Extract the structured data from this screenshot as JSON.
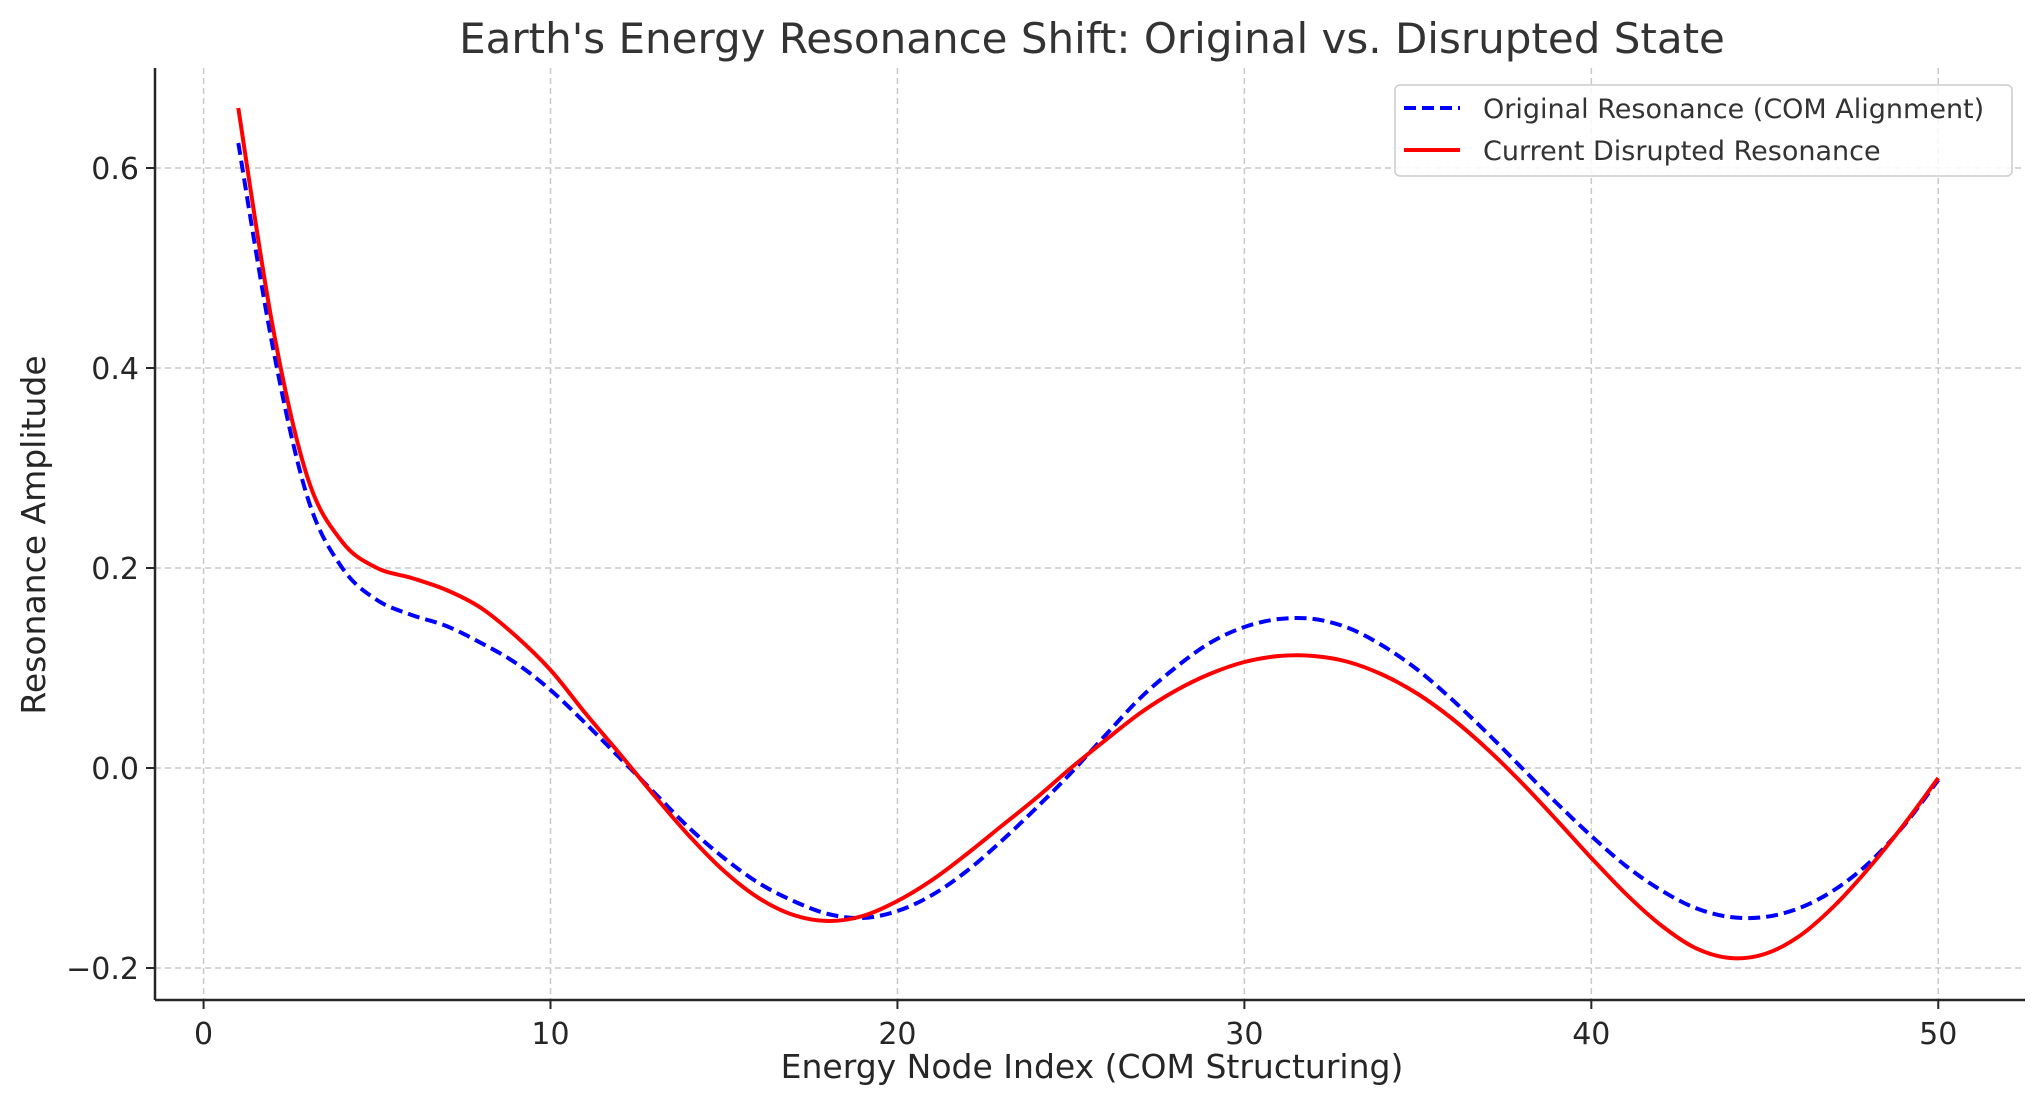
{
  "chart_data": {
    "type": "line",
    "title": "Earth's Energy Resonance Shift: Original vs. Disrupted State",
    "xlabel": "Energy Node Index (COM Structuring)",
    "ylabel": "Resonance Amplitude",
    "xlim": [
      -1.4,
      52.5
    ],
    "ylim": [
      -0.232,
      0.7
    ],
    "xticks": [
      0,
      10,
      20,
      30,
      40,
      50
    ],
    "xtick_labels": [
      "0",
      "10",
      "20",
      "30",
      "40",
      "50"
    ],
    "yticks": [
      -0.2,
      0.0,
      0.2,
      0.4,
      0.6
    ],
    "ytick_labels": [
      "−0.2",
      "0.0",
      "0.2",
      "0.4",
      "0.6"
    ],
    "grid": true,
    "legend": "top-right",
    "series": [
      {
        "name": "Original Resonance (COM Alignment)",
        "color": "#0000ff",
        "style": "dashed",
        "x": [
          1,
          2,
          3,
          4,
          5,
          6,
          7,
          8,
          9,
          10,
          11,
          12,
          13,
          14,
          15,
          16,
          17,
          18,
          19,
          20,
          21,
          22,
          23,
          24,
          25,
          26,
          27,
          28,
          29,
          30,
          31,
          32,
          33,
          34,
          35,
          36,
          37,
          38,
          39,
          40,
          41,
          42,
          43,
          44,
          45,
          46,
          47,
          48,
          49,
          50
        ],
        "values": [
          0.625,
          0.42,
          0.27,
          0.2,
          0.168,
          0.153,
          0.142,
          0.125,
          0.105,
          0.078,
          0.045,
          0.01,
          -0.025,
          -0.06,
          -0.09,
          -0.115,
          -0.133,
          -0.146,
          -0.15,
          -0.143,
          -0.127,
          -0.103,
          -0.073,
          -0.04,
          -0.005,
          0.033,
          0.07,
          0.1,
          0.125,
          0.141,
          0.149,
          0.149,
          0.14,
          0.122,
          0.098,
          0.068,
          0.035,
          0.0,
          -0.035,
          -0.068,
          -0.098,
          -0.122,
          -0.14,
          -0.149,
          -0.149,
          -0.14,
          -0.122,
          -0.095,
          -0.058,
          -0.012
        ]
      },
      {
        "name": "Current Disrupted Resonance",
        "color": "#ff0000",
        "style": "solid",
        "x": [
          1,
          2,
          3,
          4,
          5,
          6,
          7,
          8,
          9,
          10,
          11,
          12,
          13,
          14,
          15,
          16,
          17,
          18,
          19,
          20,
          21,
          22,
          23,
          24,
          25,
          26,
          27,
          28,
          29,
          30,
          31,
          32,
          33,
          34,
          35,
          36,
          37,
          38,
          39,
          40,
          41,
          42,
          43,
          44,
          45,
          46,
          47,
          48,
          49,
          50
        ],
        "values": [
          0.66,
          0.44,
          0.29,
          0.226,
          0.2,
          0.19,
          0.178,
          0.16,
          0.132,
          0.098,
          0.055,
          0.014,
          -0.028,
          -0.068,
          -0.103,
          -0.13,
          -0.147,
          -0.153,
          -0.148,
          -0.133,
          -0.112,
          -0.086,
          -0.058,
          -0.03,
          0.0,
          0.028,
          0.055,
          0.077,
          0.094,
          0.106,
          0.112,
          0.112,
          0.106,
          0.093,
          0.074,
          0.049,
          0.019,
          -0.015,
          -0.052,
          -0.09,
          -0.126,
          -0.157,
          -0.18,
          -0.19,
          -0.186,
          -0.168,
          -0.138,
          -0.1,
          -0.057,
          -0.01
        ]
      }
    ]
  }
}
